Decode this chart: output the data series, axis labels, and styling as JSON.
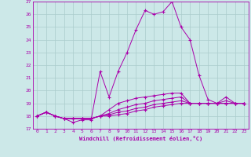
{
  "xlabel": "Windchill (Refroidissement éolien,°C)",
  "xlim": [
    -0.5,
    23.5
  ],
  "ylim": [
    17,
    27
  ],
  "yticks": [
    17,
    18,
    19,
    20,
    21,
    22,
    23,
    24,
    25,
    26,
    27
  ],
  "xticks": [
    0,
    1,
    2,
    3,
    4,
    5,
    6,
    7,
    8,
    9,
    10,
    11,
    12,
    13,
    14,
    15,
    16,
    17,
    18,
    19,
    20,
    21,
    22,
    23
  ],
  "background_color": "#cce8e8",
  "grid_color": "#aacccc",
  "line_color": "#aa00aa",
  "marker": "+",
  "series": [
    [
      18.0,
      18.3,
      18.0,
      17.8,
      17.5,
      17.7,
      17.7,
      21.5,
      19.5,
      21.5,
      23.0,
      24.8,
      26.3,
      26.0,
      26.2,
      27.0,
      25.0,
      24.0,
      21.2,
      19.3,
      19.0,
      19.5,
      19.0,
      19.0
    ],
    [
      18.0,
      18.3,
      18.0,
      17.8,
      17.8,
      17.8,
      17.8,
      18.0,
      18.5,
      19.0,
      19.2,
      19.4,
      19.5,
      19.6,
      19.7,
      19.8,
      19.8,
      19.0,
      19.0,
      19.0,
      19.0,
      19.2,
      19.0,
      19.0
    ],
    [
      18.0,
      18.3,
      18.0,
      17.8,
      17.8,
      17.8,
      17.8,
      18.0,
      18.2,
      18.5,
      18.7,
      18.9,
      19.0,
      19.2,
      19.3,
      19.4,
      19.5,
      19.0,
      19.0,
      19.0,
      19.0,
      19.0,
      19.0,
      19.0
    ],
    [
      18.0,
      18.3,
      18.0,
      17.8,
      17.8,
      17.8,
      17.8,
      18.0,
      18.1,
      18.3,
      18.4,
      18.6,
      18.7,
      18.9,
      19.0,
      19.1,
      19.2,
      19.0,
      19.0,
      19.0,
      19.0,
      19.0,
      19.0,
      19.0
    ],
    [
      18.0,
      18.3,
      18.0,
      17.8,
      17.8,
      17.8,
      17.8,
      18.0,
      18.0,
      18.1,
      18.2,
      18.4,
      18.5,
      18.7,
      18.8,
      18.9,
      19.0,
      19.0,
      19.0,
      19.0,
      19.0,
      19.0,
      19.0,
      19.0
    ]
  ]
}
